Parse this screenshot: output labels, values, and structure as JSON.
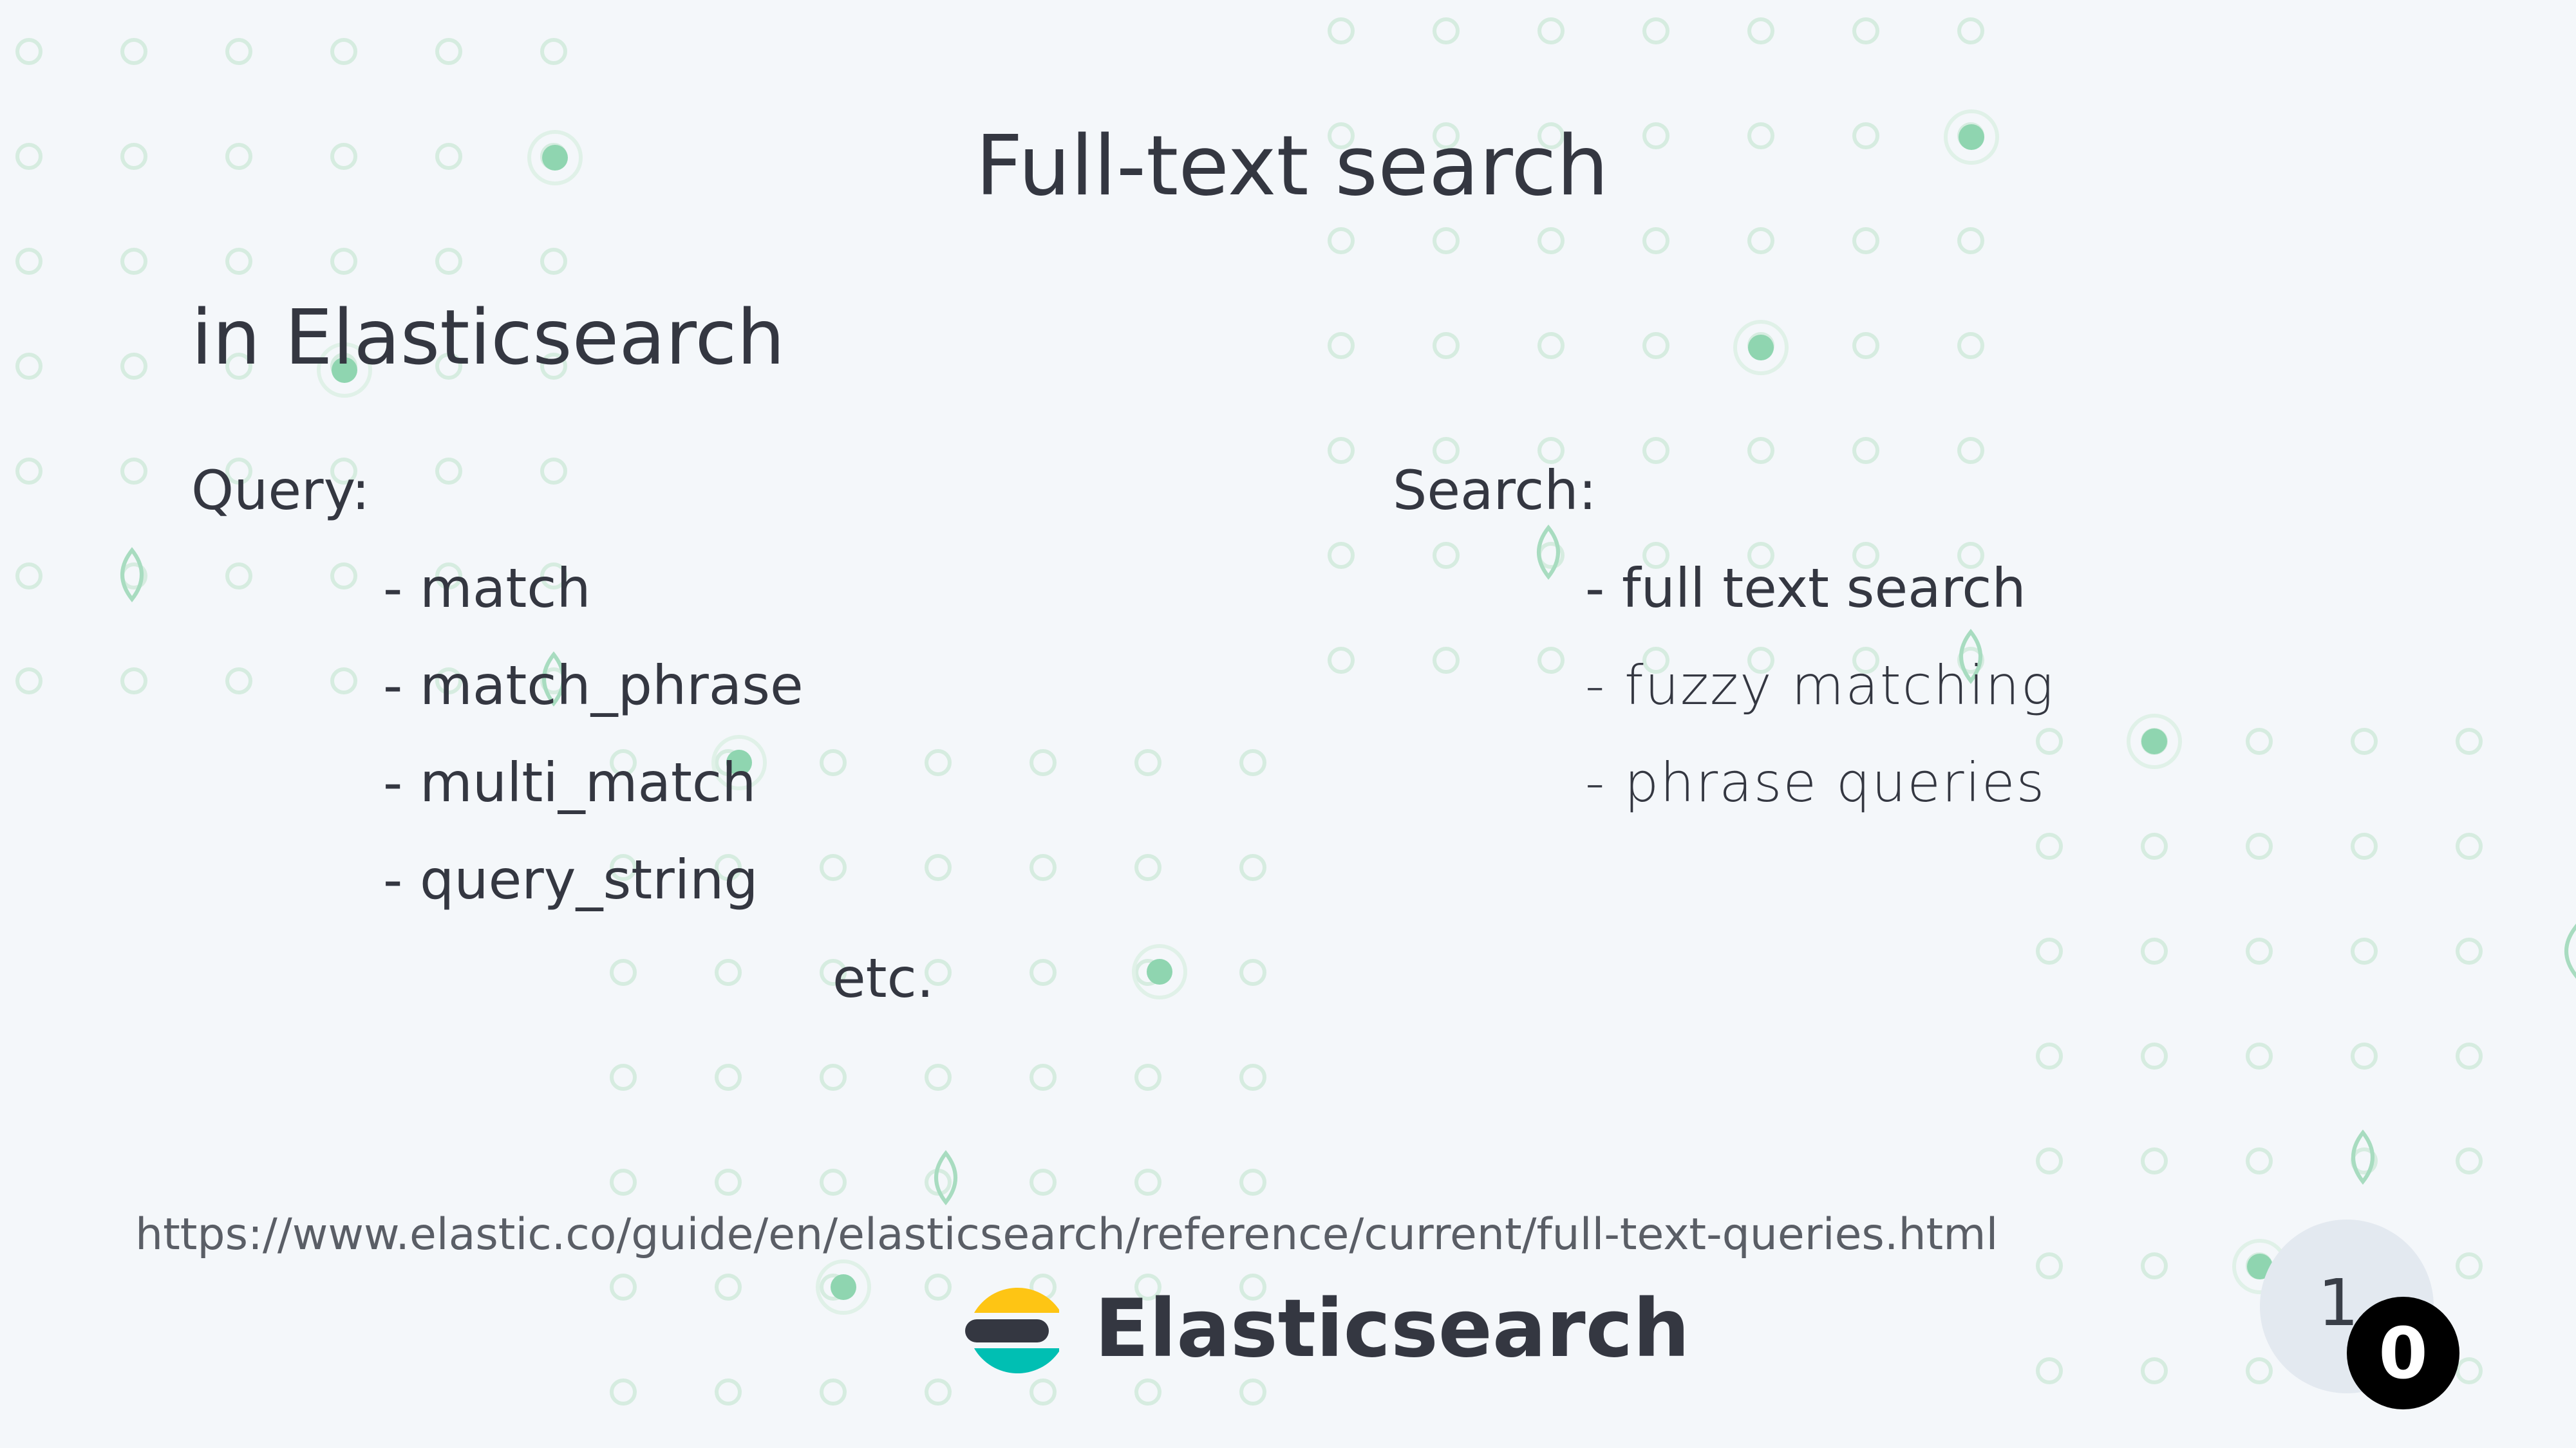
{
  "slide": {
    "title": "Full-text search",
    "subtitle": "in Elasticsearch",
    "query": {
      "heading": "Query:",
      "items": [
        "- match",
        "- match_phrase",
        "- multi_match",
        "- query_string"
      ],
      "more": "etc."
    },
    "search": {
      "heading": "Search:",
      "items": [
        "- full text search",
        "- fuzzy matching",
        "- phrase queries"
      ]
    },
    "reference_url": "https://www.elastic.co/guide/en/elasticsearch/reference/current/full-text-queries.html",
    "brand": {
      "name": "Elasticsearch",
      "logo_icon": "elasticsearch-logo-icon",
      "logo_colors": [
        "#fec514",
        "#343741",
        "#00bfb3"
      ]
    },
    "page_number": {
      "first": "1",
      "second": "0"
    }
  },
  "colors": {
    "background": "#f4f7fa",
    "text": "#343741",
    "dot_outline": "#d6ece0",
    "dot_fill": "#8fd5b0"
  }
}
